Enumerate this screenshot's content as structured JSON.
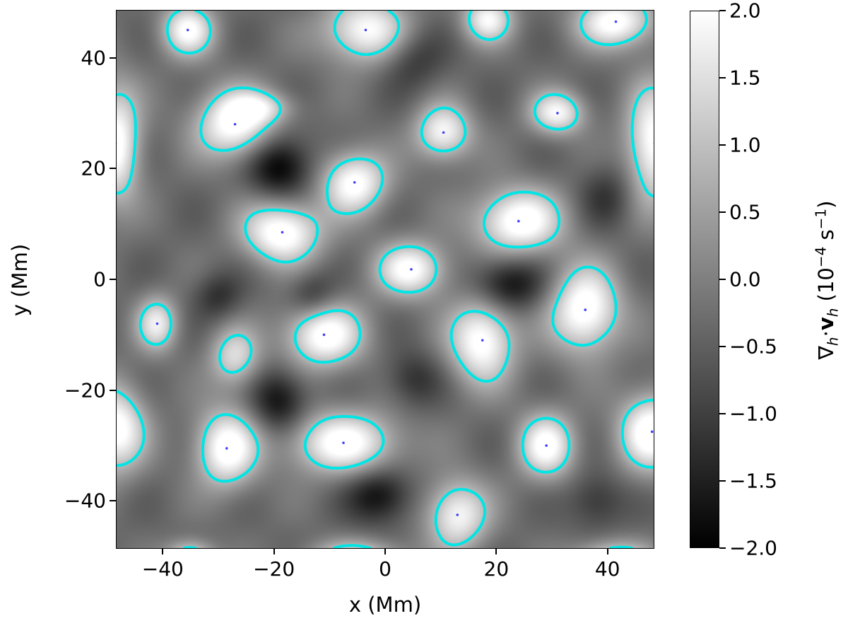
{
  "chart_data": {
    "type": "heatmap",
    "xlabel": "x (Mm)",
    "ylabel": "y (Mm)",
    "xlim": [
      -48.3,
      48.3
    ],
    "ylim": [
      -48.5,
      48.5
    ],
    "xticks": [
      "−40",
      "−20",
      "0",
      "20",
      "40"
    ],
    "xtick_values": [
      -40,
      -20,
      0,
      20,
      40
    ],
    "yticks": [
      "−40",
      "−20",
      "0",
      "20",
      "40"
    ],
    "ytick_values": [
      -40,
      -20,
      0,
      20,
      40
    ],
    "colorbar": {
      "label_parts": [
        "∇",
        "h",
        "·",
        "v",
        "h",
        " (10",
        "−4",
        " s",
        "−1",
        ")"
      ],
      "range": [
        -2.0,
        2.0
      ],
      "colormap": "gray",
      "ticks": [
        "2.0",
        "1.5",
        "1.0",
        "0.5",
        "0.0",
        "−0.5",
        "−1.0",
        "−1.5",
        "−2.0"
      ],
      "tick_values": [
        2.0,
        1.5,
        1.0,
        0.5,
        0.0,
        -0.5,
        -1.0,
        -1.5,
        -2.0
      ]
    },
    "contour_level": 0.9,
    "contour_color": "#00e5e5",
    "marker_color": "#4040ff",
    "background_level": -0.35,
    "features": [
      {
        "x": -35.5,
        "y": 45,
        "amp": 2.3,
        "sx": 3.4,
        "sy": 3.4,
        "marker": true
      },
      {
        "x": -3.5,
        "y": 45,
        "amp": 2.4,
        "sx": 5.5,
        "sy": 4.2,
        "marker": true
      },
      {
        "x": 18.5,
        "y": 47,
        "amp": 2.2,
        "sx": 3.2,
        "sy": 3.0,
        "marker": false
      },
      {
        "x": 41.5,
        "y": 46.5,
        "amp": 2.5,
        "sx": 5.0,
        "sy": 3.3,
        "marker": true
      },
      {
        "x": -27,
        "y": 28,
        "amp": 2.6,
        "sx": 5.0,
        "sy": 4.5,
        "marker": true
      },
      {
        "x": -22,
        "y": 31,
        "amp": 1.2,
        "sx": 4.0,
        "sy": 2.0,
        "marker": false
      },
      {
        "x": 10.5,
        "y": 26.5,
        "amp": 2.3,
        "sx": 3.6,
        "sy": 3.6,
        "marker": true
      },
      {
        "x": 31,
        "y": 30,
        "amp": 2.2,
        "sx": 3.5,
        "sy": 2.8,
        "marker": true
      },
      {
        "x": -48.5,
        "y": 24.5,
        "amp": 2.6,
        "sx": 3.2,
        "sy": 7.5,
        "marker": true
      },
      {
        "x": 48.5,
        "y": 24.5,
        "amp": 2.6,
        "sx": 3.6,
        "sy": 7.5,
        "marker": true
      },
      {
        "x": -5.5,
        "y": 17.5,
        "amp": 2.5,
        "sx": 4.2,
        "sy": 4.0,
        "marker": true
      },
      {
        "x": -18.5,
        "y": 8.5,
        "amp": 2.7,
        "sx": 5.0,
        "sy": 4.0,
        "marker": true
      },
      {
        "x": 24,
        "y": 10.5,
        "amp": 2.7,
        "sx": 5.5,
        "sy": 4.2,
        "marker": true
      },
      {
        "x": 4.7,
        "y": 1.8,
        "amp": 2.4,
        "sx": 4.5,
        "sy": 3.5,
        "marker": true
      },
      {
        "x": -41,
        "y": -8,
        "amp": 2.0,
        "sx": 2.6,
        "sy": 3.5,
        "marker": true
      },
      {
        "x": -11,
        "y": -10,
        "amp": 2.6,
        "sx": 5.0,
        "sy": 4.2,
        "marker": true
      },
      {
        "x": 17.5,
        "y": -11,
        "amp": 2.6,
        "sx": 4.2,
        "sy": 5.5,
        "marker": true
      },
      {
        "x": 36,
        "y": -5.5,
        "amp": 2.7,
        "sx": 4.5,
        "sy": 5.5,
        "marker": true
      },
      {
        "x": -28.5,
        "y": -30.5,
        "amp": 2.6,
        "sx": 4.0,
        "sy": 5.0,
        "marker": true
      },
      {
        "x": -27,
        "y": -14,
        "amp": 1.8,
        "sx": 3.2,
        "sy": 3.8,
        "marker": false
      },
      {
        "x": -7.5,
        "y": -29.5,
        "amp": 2.5,
        "sx": 7.0,
        "sy": 4.0,
        "marker": true
      },
      {
        "x": 29,
        "y": -30,
        "amp": 2.4,
        "sx": 3.6,
        "sy": 4.2,
        "marker": true
      },
      {
        "x": -48.5,
        "y": -27,
        "amp": 2.6,
        "sx": 3.8,
        "sy": 5.5,
        "marker": false
      },
      {
        "x": 48,
        "y": -27.5,
        "amp": 2.7,
        "sx": 4.2,
        "sy": 5.0,
        "marker": true
      },
      {
        "x": 13,
        "y": -42.5,
        "amp": 2.3,
        "sx": 4.0,
        "sy": 4.5,
        "marker": true
      },
      {
        "x": -35,
        "y": -50,
        "amp": 2.0,
        "sx": 3.0,
        "sy": 2.0,
        "marker": false
      },
      {
        "x": -5,
        "y": -51,
        "amp": 2.3,
        "sx": 6.0,
        "sy": 2.5,
        "marker": false
      },
      {
        "x": 41,
        "y": -51,
        "amp": 2.3,
        "sx": 5.0,
        "sy": 2.5,
        "marker": false
      },
      {
        "x": -19,
        "y": 20.5,
        "amp": -1.8,
        "sx": 4.0,
        "sy": 4.0,
        "marker": false
      },
      {
        "x": -19,
        "y": -22,
        "amp": -1.5,
        "sx": 3.5,
        "sy": 4.0,
        "marker": false
      },
      {
        "x": -1,
        "y": -39,
        "amp": -1.5,
        "sx": 4.0,
        "sy": 3.5,
        "marker": false
      },
      {
        "x": 22,
        "y": -1,
        "amp": -1.6,
        "sx": 4.5,
        "sy": 3.5,
        "marker": false
      },
      {
        "x": -13,
        "y": -3,
        "amp": -1.0,
        "sx": 3.0,
        "sy": 3.0,
        "marker": false
      },
      {
        "x": -30,
        "y": -3,
        "amp": -0.9,
        "sx": 3.0,
        "sy": 3.0,
        "marker": false
      },
      {
        "x": 5,
        "y": 40,
        "amp": -0.9,
        "sx": 4.0,
        "sy": 4.0,
        "marker": false
      },
      {
        "x": 40,
        "y": 15,
        "amp": -0.8,
        "sx": 3.5,
        "sy": 4.0,
        "marker": false
      },
      {
        "x": 38,
        "y": -40,
        "amp": -0.9,
        "sx": 3.5,
        "sy": 3.5,
        "marker": false
      },
      {
        "x": 5,
        "y": -18,
        "amp": -0.9,
        "sx": 3.5,
        "sy": 3.5,
        "marker": false
      }
    ]
  }
}
